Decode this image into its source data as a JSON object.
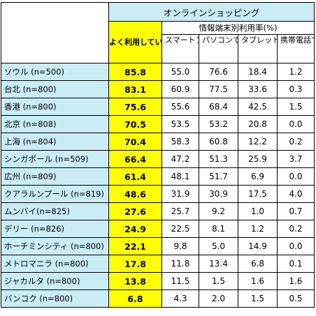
{
  "header": {
    "main_title": "オンラインショッピング",
    "highlight_title": "よく利用している<計>",
    "sub_title": "情報端末別利用率(%)",
    "devices": [
      "スマートフォンで",
      "パソコンで",
      "タブレット端末で",
      "携帯電話で"
    ]
  },
  "rows": [
    {
      "city": "ソウル (n=500)",
      "total": "85.8",
      "values": [
        "55.0",
        "76.6",
        "18.4",
        "1.2"
      ]
    },
    {
      "city": "台北 (n=800)",
      "total": "83.1",
      "values": [
        "60.9",
        "77.5",
        "33.6",
        "0.3"
      ]
    },
    {
      "city": "香港 (n=800)",
      "total": "75.6",
      "values": [
        "55.6",
        "68.4",
        "42.5",
        "1.5"
      ]
    },
    {
      "city": "北京 (n=808)",
      "total": "70.5",
      "values": [
        "53.5",
        "53.2",
        "20.8",
        "0.0"
      ]
    },
    {
      "city": "上海 (n=804)",
      "total": "70.4",
      "values": [
        "58.3",
        "60.8",
        "12.2",
        "0.2"
      ]
    },
    {
      "city": "シンガポール (n=509)",
      "total": "66.4",
      "values": [
        "47.2",
        "51.3",
        "25.9",
        "3.7"
      ]
    },
    {
      "city": "広州 (n=809)",
      "total": "61.4",
      "values": [
        "48.1",
        "51.7",
        "6.9",
        "0.0"
      ]
    },
    {
      "city": "クアラルンプール (n=819)",
      "total": "48.6",
      "values": [
        "31.9",
        "30.9",
        "17.5",
        "4.0"
      ]
    },
    {
      "city": "ムンバイ(n=825)",
      "total": "27.6",
      "values": [
        "25.7",
        "9.2",
        "1.0",
        "0.7"
      ]
    },
    {
      "city": "デリー (n=826)",
      "total": "24.9",
      "values": [
        "22.5",
        "8.1",
        "1.2",
        "0.2"
      ]
    },
    {
      "city": "ホーチミンシティ (n=800)",
      "total": "22.1",
      "values": [
        "9.8",
        "5.0",
        "14.9",
        "0.0"
      ]
    },
    {
      "city": "メトロマニラ (n=800)",
      "total": "17.8",
      "values": [
        "11.8",
        "13.4",
        "6.8",
        "0.1"
      ]
    },
    {
      "city": "ジャカルタ (n=800)",
      "total": "13.8",
      "values": [
        "11.5",
        "1.5",
        "1.6",
        "1.6"
      ]
    },
    {
      "city": "バンコク (n=800)",
      "total": "6.8",
      "values": [
        "4.3",
        "2.0",
        "1.5",
        "0.5"
      ]
    }
  ]
}
